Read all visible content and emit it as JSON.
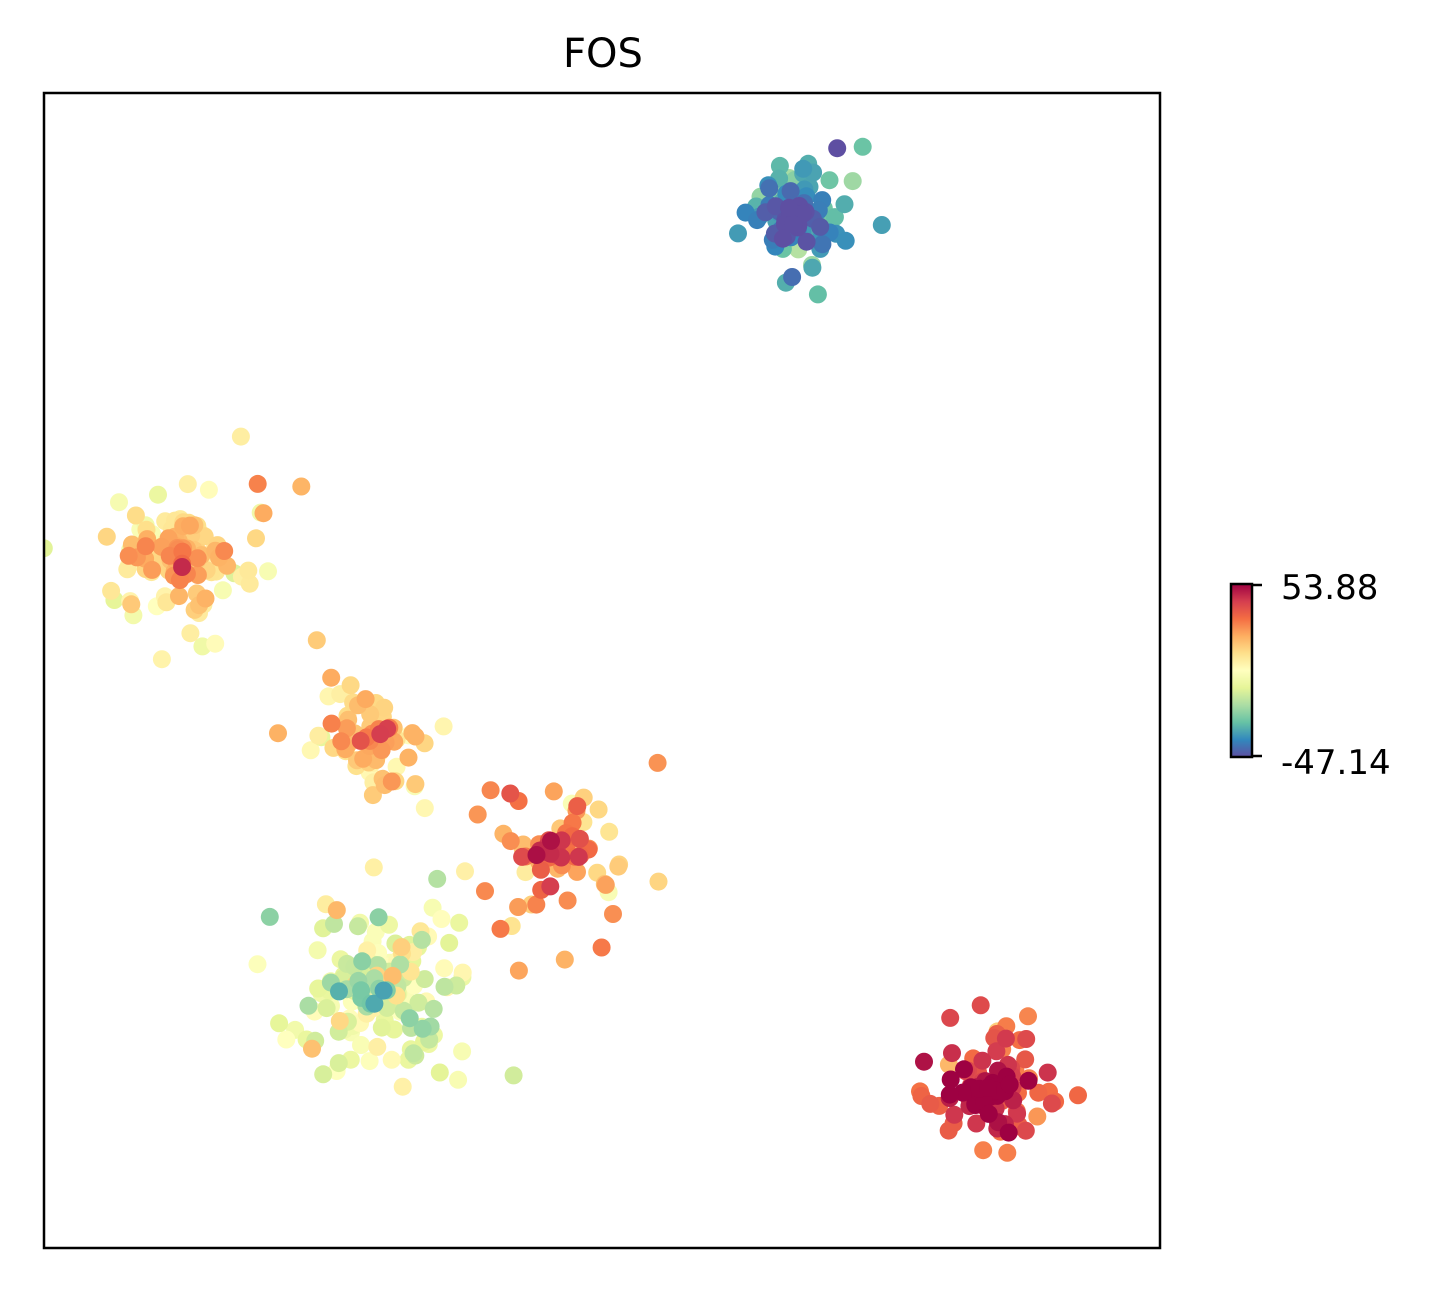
{
  "chart_data": {
    "type": "scatter",
    "title": "FOS",
    "xlabel": "",
    "ylabel": "",
    "axes_ticks": false,
    "colormap": "Spectral_r",
    "colormap_stops": [
      "#5e4fa2",
      "#3288bd",
      "#66c2a5",
      "#abdda4",
      "#e6f598",
      "#ffffbf",
      "#fee08b",
      "#fdae61",
      "#f46d43",
      "#d53e4f",
      "#9e0142"
    ],
    "colorbar": {
      "max_label": "53.88",
      "min_label": "-47.14",
      "vmax": 53.88,
      "vmin": -47.14,
      "placement": "right"
    },
    "xlim": [
      0,
      100
    ],
    "ylim": [
      0,
      100
    ],
    "clusters": [
      {
        "name": "top-right",
        "cx": 67.2,
        "cy": 89.5,
        "sd": 3.0,
        "count": 130,
        "value_mean": -28,
        "value_sd": 9
      },
      {
        "name": "upper-left",
        "cx": 12.5,
        "cy": 60.0,
        "sd": 3.6,
        "count": 170,
        "value_mean": 12,
        "value_sd": 8
      },
      {
        "name": "middle-left",
        "cx": 29.5,
        "cy": 44.0,
        "sd": 3.6,
        "count": 85,
        "value_mean": 14,
        "value_sd": 8
      },
      {
        "name": "middle",
        "cx": 45.5,
        "cy": 34.5,
        "sd": 4.8,
        "count": 95,
        "value_mean": 22,
        "value_sd": 11
      },
      {
        "name": "lower-left",
        "cx": 30.0,
        "cy": 22.5,
        "sd": 5.2,
        "count": 200,
        "value_mean": -2,
        "value_sd": 10
      },
      {
        "name": "bottom-right",
        "cx": 84.5,
        "cy": 13.5,
        "sd": 3.6,
        "count": 115,
        "value_mean": 36,
        "value_sd": 9
      }
    ]
  }
}
